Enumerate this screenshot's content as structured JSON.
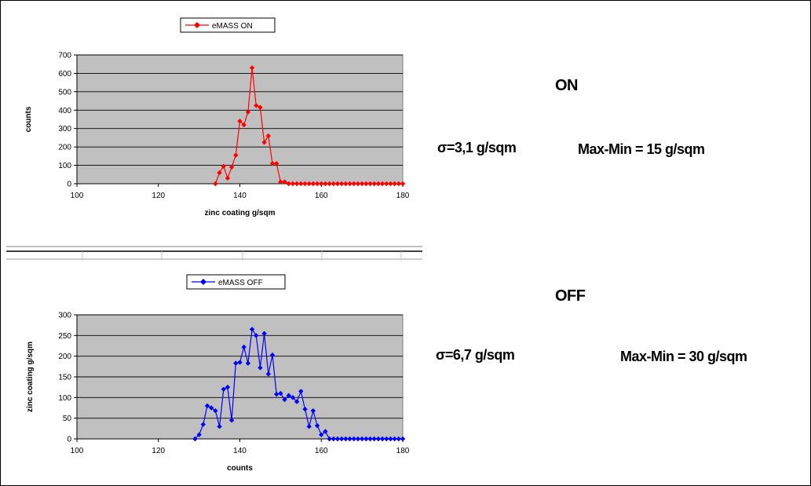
{
  "colors": {
    "plot_bg": "#c0c0c0",
    "on_series": "#ff0000",
    "off_series": "#0000ff"
  },
  "labels": {
    "on_title": "ON",
    "on_sigma": "σ=3,1 g/sqm",
    "on_range": "Max-Min = 15 g/sqm",
    "off_title": "OFF",
    "off_sigma": "σ=6,7 g/sqm",
    "off_range": "Max-Min = 30 g/sqm"
  },
  "chart_data": [
    {
      "type": "line",
      "legend": "eMASS ON",
      "xlabel": "zinc coating g/sqm",
      "ylabel": "counts",
      "xlim": [
        100,
        180
      ],
      "ylim": [
        0,
        700
      ],
      "xticks": [
        100,
        120,
        140,
        160,
        180
      ],
      "yticks": [
        0,
        100,
        200,
        300,
        400,
        500,
        600,
        700
      ],
      "grid": "horizontal",
      "legend_position": "top",
      "series": [
        {
          "name": "eMASS ON",
          "color": "#ff0000",
          "marker": "diamond",
          "x": [
            134,
            135,
            136,
            137,
            138,
            139,
            140,
            141,
            142,
            143,
            144,
            145,
            146,
            147,
            148,
            149,
            150,
            151,
            152,
            153,
            154,
            155,
            156,
            157,
            158,
            159,
            160,
            161,
            162,
            163,
            164,
            165,
            166,
            167,
            168,
            169,
            170,
            171,
            172,
            173,
            174,
            175,
            176,
            177,
            178,
            179,
            180
          ],
          "y": [
            0,
            60,
            95,
            30,
            90,
            155,
            340,
            320,
            390,
            630,
            425,
            415,
            225,
            260,
            110,
            110,
            10,
            10,
            0,
            0,
            0,
            0,
            0,
            0,
            0,
            0,
            0,
            0,
            0,
            0,
            0,
            0,
            0,
            0,
            0,
            0,
            0,
            0,
            0,
            0,
            0,
            0,
            0,
            0,
            0,
            0,
            0
          ]
        }
      ]
    },
    {
      "type": "line",
      "legend": "eMASS OFF",
      "xlabel": "counts",
      "ylabel": "zinc coating g/sqm",
      "xlim": [
        100,
        180
      ],
      "ylim": [
        0,
        300
      ],
      "xticks": [
        100,
        120,
        140,
        160,
        180
      ],
      "yticks": [
        0,
        50,
        100,
        150,
        200,
        250,
        300
      ],
      "grid": "horizontal",
      "legend_position": "top",
      "series": [
        {
          "name": "eMASS OFF",
          "color": "#0000ff",
          "marker": "diamond",
          "x": [
            129,
            130,
            131,
            132,
            133,
            134,
            135,
            136,
            137,
            138,
            139,
            140,
            141,
            142,
            143,
            144,
            145,
            146,
            147,
            148,
            149,
            150,
            151,
            152,
            153,
            154,
            155,
            156,
            157,
            158,
            159,
            160,
            161,
            162,
            163,
            164,
            165,
            166,
            167,
            168,
            169,
            170,
            171,
            172,
            173,
            174,
            175,
            176,
            177,
            178,
            179,
            180
          ],
          "y": [
            0,
            10,
            35,
            80,
            75,
            68,
            30,
            120,
            125,
            45,
            183,
            185,
            222,
            183,
            265,
            250,
            172,
            255,
            157,
            203,
            108,
            110,
            95,
            105,
            100,
            90,
            115,
            72,
            30,
            68,
            32,
            10,
            18,
            0,
            0,
            0,
            0,
            0,
            0,
            0,
            0,
            0,
            0,
            0,
            0,
            0,
            0,
            0,
            0,
            0,
            0,
            0
          ]
        }
      ]
    }
  ]
}
